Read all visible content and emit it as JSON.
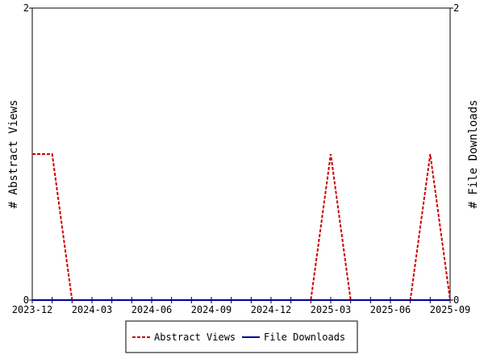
{
  "chart_data": {
    "type": "line",
    "x": [
      "2023-12",
      "2024-01",
      "2024-02",
      "2024-03",
      "2024-04",
      "2024-05",
      "2024-06",
      "2024-07",
      "2024-08",
      "2024-09",
      "2024-10",
      "2024-11",
      "2024-12",
      "2025-01",
      "2025-02",
      "2025-03",
      "2025-04",
      "2025-05",
      "2025-06",
      "2025-07",
      "2025-08",
      "2025-09"
    ],
    "xticks": [
      "2023-12",
      "2024-03",
      "2024-06",
      "2024-09",
      "2024-12",
      "2025-03",
      "2025-06",
      "2025-09"
    ],
    "y_label": "# Abstract Views",
    "y2_label": "# File Downloads",
    "ylim": [
      0,
      2
    ],
    "yticks": [
      0,
      2
    ],
    "y2lim": [
      0,
      2
    ],
    "y2ticks": [
      0,
      2
    ],
    "series": [
      {
        "name": "Abstract Views",
        "color": "#cc0000",
        "dash": true,
        "values": [
          1,
          1,
          0,
          0,
          0,
          0,
          0,
          0,
          0,
          0,
          0,
          0,
          0,
          0,
          0,
          1,
          0,
          0,
          0,
          0,
          1,
          0
        ]
      },
      {
        "name": "File Downloads",
        "color": "#000099",
        "dash": false,
        "axis": "y2",
        "values": [
          0,
          0,
          0,
          0,
          0,
          0,
          0,
          0,
          0,
          0,
          0,
          0,
          0,
          0,
          0,
          0,
          0,
          0,
          0,
          0,
          0,
          0
        ]
      }
    ]
  }
}
